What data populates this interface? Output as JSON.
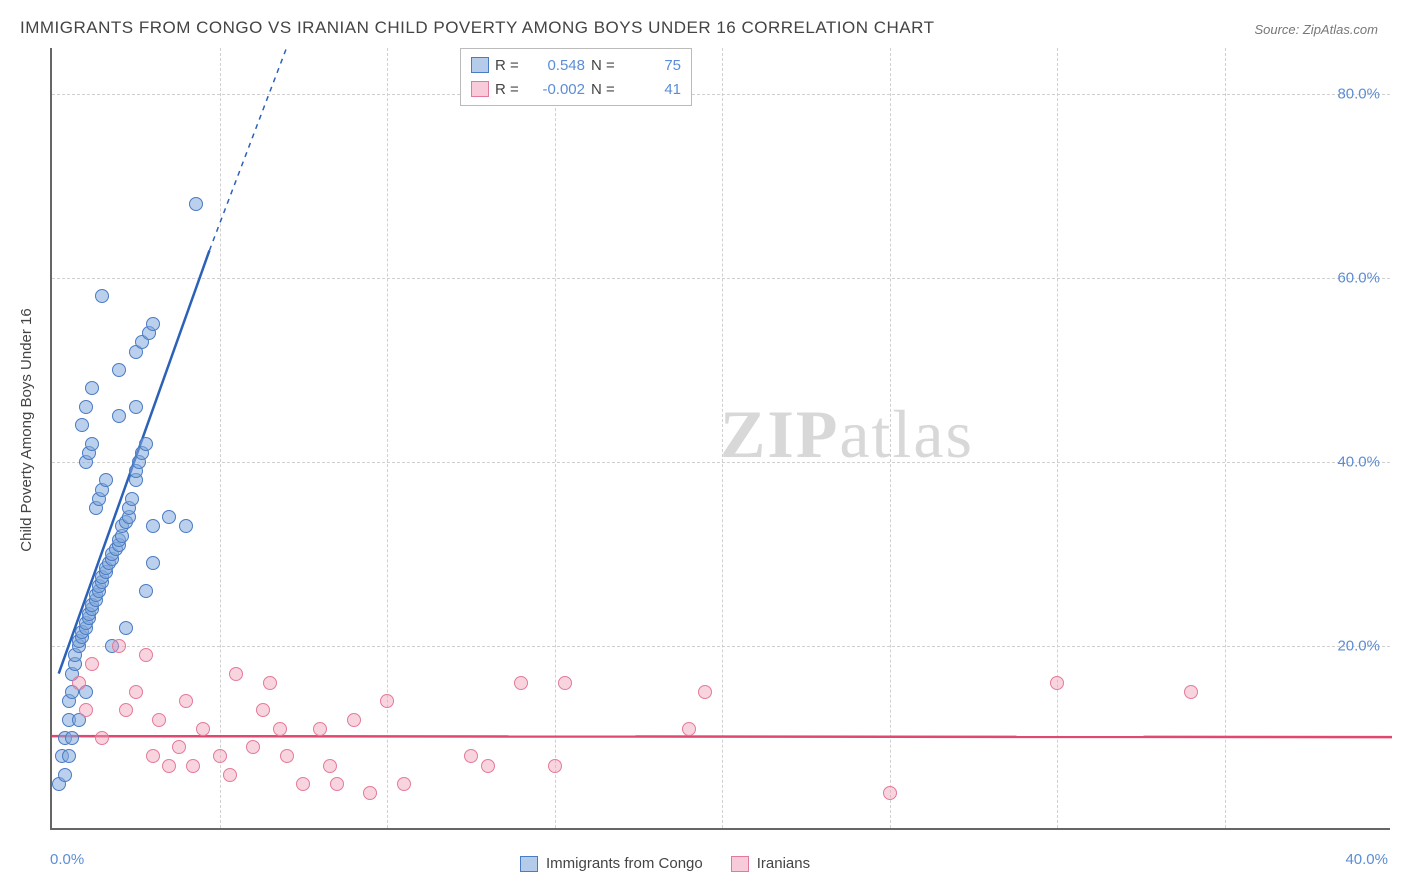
{
  "title": "IMMIGRANTS FROM CONGO VS IRANIAN CHILD POVERTY AMONG BOYS UNDER 16 CORRELATION CHART",
  "source_label": "Source: ",
  "source_value": "ZipAtlas.com",
  "ylabel": "Child Poverty Among Boys Under 16",
  "watermark_a": "ZIP",
  "watermark_b": "atlas",
  "chart": {
    "type": "scatter",
    "xlim": [
      0,
      40
    ],
    "ylim": [
      0,
      85
    ],
    "xtick_left": "0.0%",
    "xtick_right": "40.0%",
    "yticks": [
      {
        "v": 20,
        "label": "20.0%"
      },
      {
        "v": 40,
        "label": "40.0%"
      },
      {
        "v": 60,
        "label": "60.0%"
      },
      {
        "v": 80,
        "label": "80.0%"
      }
    ],
    "grid_color": "#d0d0d0",
    "background_color": "#ffffff",
    "marker_radius": 7,
    "series": [
      {
        "name": "Immigrants from Congo",
        "color_fill": "rgba(130,170,220,0.55)",
        "color_stroke": "#4a7bc4",
        "R": "0.548",
        "N": "75",
        "trend": {
          "x1": 0.2,
          "y1": 17,
          "x2_solid": 4.7,
          "y2_solid": 63,
          "x2_dash": 7.0,
          "y2_dash": 85,
          "stroke": "#2b61b8",
          "width": 2.5
        },
        "points": [
          [
            0.2,
            5
          ],
          [
            0.3,
            8
          ],
          [
            0.4,
            10
          ],
          [
            0.5,
            12
          ],
          [
            0.5,
            14
          ],
          [
            0.6,
            15
          ],
          [
            0.6,
            17
          ],
          [
            0.7,
            18
          ],
          [
            0.7,
            19
          ],
          [
            0.8,
            20
          ],
          [
            0.8,
            20.5
          ],
          [
            0.9,
            21
          ],
          [
            0.9,
            21.5
          ],
          [
            1.0,
            22
          ],
          [
            1.0,
            22.5
          ],
          [
            1.1,
            23
          ],
          [
            1.1,
            23.5
          ],
          [
            1.2,
            24
          ],
          [
            1.2,
            24.5
          ],
          [
            1.3,
            25
          ],
          [
            1.3,
            25.5
          ],
          [
            1.4,
            26
          ],
          [
            1.4,
            26.5
          ],
          [
            1.5,
            27
          ],
          [
            1.5,
            27.5
          ],
          [
            1.6,
            28
          ],
          [
            1.6,
            28.5
          ],
          [
            1.7,
            29
          ],
          [
            1.8,
            29.5
          ],
          [
            1.8,
            30
          ],
          [
            1.9,
            30.5
          ],
          [
            2.0,
            31
          ],
          [
            2.0,
            31.5
          ],
          [
            2.1,
            32
          ],
          [
            2.1,
            33
          ],
          [
            2.2,
            33.5
          ],
          [
            2.3,
            34
          ],
          [
            2.3,
            35
          ],
          [
            2.4,
            36
          ],
          [
            2.5,
            38
          ],
          [
            2.5,
            39
          ],
          [
            2.6,
            40
          ],
          [
            2.7,
            41
          ],
          [
            2.8,
            42
          ],
          [
            3.0,
            29
          ],
          [
            3.0,
            33
          ],
          [
            3.5,
            34
          ],
          [
            1.3,
            35
          ],
          [
            1.4,
            36
          ],
          [
            1.5,
            37
          ],
          [
            1.6,
            38
          ],
          [
            1.0,
            40
          ],
          [
            1.1,
            41
          ],
          [
            1.2,
            42
          ],
          [
            2.0,
            45
          ],
          [
            2.5,
            46
          ],
          [
            0.9,
            44
          ],
          [
            1.0,
            46
          ],
          [
            1.2,
            48
          ],
          [
            2.0,
            50
          ],
          [
            2.5,
            52
          ],
          [
            2.7,
            53
          ],
          [
            2.9,
            54
          ],
          [
            3.0,
            55
          ],
          [
            1.5,
            58
          ],
          [
            4.0,
            33
          ],
          [
            4.3,
            68
          ],
          [
            1.0,
            15
          ],
          [
            0.8,
            12
          ],
          [
            0.6,
            10
          ],
          [
            0.5,
            8
          ],
          [
            0.4,
            6
          ],
          [
            1.8,
            20
          ],
          [
            2.2,
            22
          ],
          [
            2.8,
            26
          ]
        ]
      },
      {
        "name": "Iranians",
        "color_fill": "rgba(240,160,185,0.45)",
        "color_stroke": "#e47a9a",
        "R": "-0.002",
        "N": "41",
        "trend": {
          "x1": 0,
          "y1": 10.2,
          "x2_solid": 40,
          "y2_solid": 10.1,
          "stroke": "#e0486f",
          "width": 2.5
        },
        "points": [
          [
            0.8,
            16
          ],
          [
            1.2,
            18
          ],
          [
            1.5,
            10
          ],
          [
            2.0,
            20
          ],
          [
            2.2,
            13
          ],
          [
            2.5,
            15
          ],
          [
            3.0,
            8
          ],
          [
            3.2,
            12
          ],
          [
            3.5,
            7
          ],
          [
            3.8,
            9
          ],
          [
            4.0,
            14
          ],
          [
            4.2,
            7
          ],
          [
            4.5,
            11
          ],
          [
            5.0,
            8
          ],
          [
            5.3,
            6
          ],
          [
            5.5,
            17
          ],
          [
            6.0,
            9
          ],
          [
            6.3,
            13
          ],
          [
            6.5,
            16
          ],
          [
            7.0,
            8
          ],
          [
            7.5,
            5
          ],
          [
            8.0,
            11
          ],
          [
            8.3,
            7
          ],
          [
            8.5,
            5
          ],
          [
            9.0,
            12
          ],
          [
            9.5,
            4
          ],
          [
            10.0,
            14
          ],
          [
            10.5,
            5
          ],
          [
            12.5,
            8
          ],
          [
            13.0,
            7
          ],
          [
            14.0,
            16
          ],
          [
            15.0,
            7
          ],
          [
            15.3,
            16
          ],
          [
            19.0,
            11
          ],
          [
            19.5,
            15
          ],
          [
            25.0,
            4
          ],
          [
            30.0,
            16
          ],
          [
            34.0,
            15
          ],
          [
            2.8,
            19
          ],
          [
            1.0,
            13
          ],
          [
            6.8,
            11
          ]
        ]
      }
    ]
  },
  "legend_top": {
    "R_label": "R =",
    "N_label": "N ="
  },
  "legend_bottom": {
    "items": [
      "Immigrants from Congo",
      "Iranians"
    ]
  }
}
